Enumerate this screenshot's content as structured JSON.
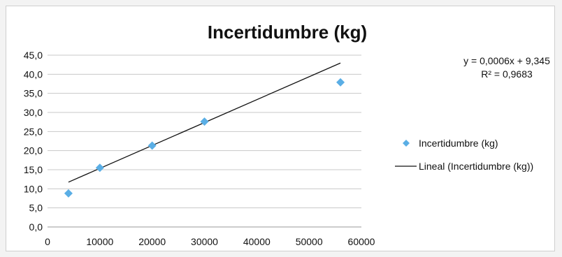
{
  "chart_data": {
    "type": "scatter",
    "title": "Incertidumbre (kg)",
    "xlabel": "",
    "ylabel": "",
    "xlim": [
      0,
      60000
    ],
    "ylim": [
      0,
      45
    ],
    "x_ticks": [
      "0",
      "10000",
      "20000",
      "30000",
      "40000",
      "50000",
      "60000"
    ],
    "y_ticks": [
      "0,0",
      "5,0",
      "10,0",
      "15,0",
      "20,0",
      "25,0",
      "30,0",
      "35,0",
      "40,0",
      "45,0"
    ],
    "grid": true,
    "legend_position": "right",
    "series": [
      {
        "name": "Incertidumbre (kg)",
        "marker": "diamond",
        "color": "#5aaee5",
        "points": [
          {
            "x": 4000,
            "y": 8.8
          },
          {
            "x": 10000,
            "y": 15.5
          },
          {
            "x": 20000,
            "y": 21.3
          },
          {
            "x": 30000,
            "y": 27.6
          },
          {
            "x": 56000,
            "y": 37.9
          }
        ]
      }
    ],
    "trendline": {
      "name": "Lineal (Incertidumbre (kg))",
      "type": "linear",
      "slope": 0.0006,
      "intercept": 9.345,
      "x_range": [
        4000,
        56000
      ],
      "color": "#111111",
      "equation": "y = 0,0006x + 9,345",
      "r_squared": "R² = 0,9683"
    },
    "legend": [
      "Incertidumbre (kg)",
      "Lineal (Incertidumbre (kg))"
    ]
  }
}
